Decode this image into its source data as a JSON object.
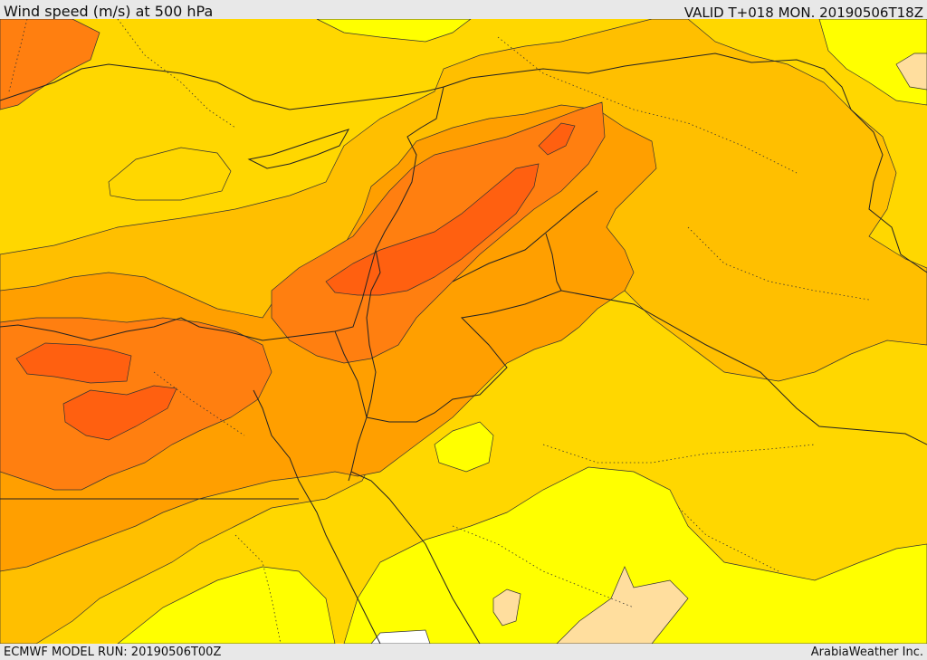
{
  "header": {
    "title": "Wind speed (m/s) at 500 hPa",
    "valid": "VALID T+018 MON. 20190506T18Z"
  },
  "footer": {
    "model_run": "ECMWF MODEL RUN: 20190506T00Z",
    "credit": "ArabiaWeather Inc."
  },
  "colors": {
    "band_15_20": "#ffde9e",
    "band_20_25": "#ffff00",
    "band_25_30": "#ffd700",
    "band_30_35": "#ffbf00",
    "band_35_40": "#ff9f00",
    "band_40_45": "#ff7f10",
    "band_45_50": "#ff6010",
    "border_line": "#222222",
    "contour_line": "#333333"
  }
}
